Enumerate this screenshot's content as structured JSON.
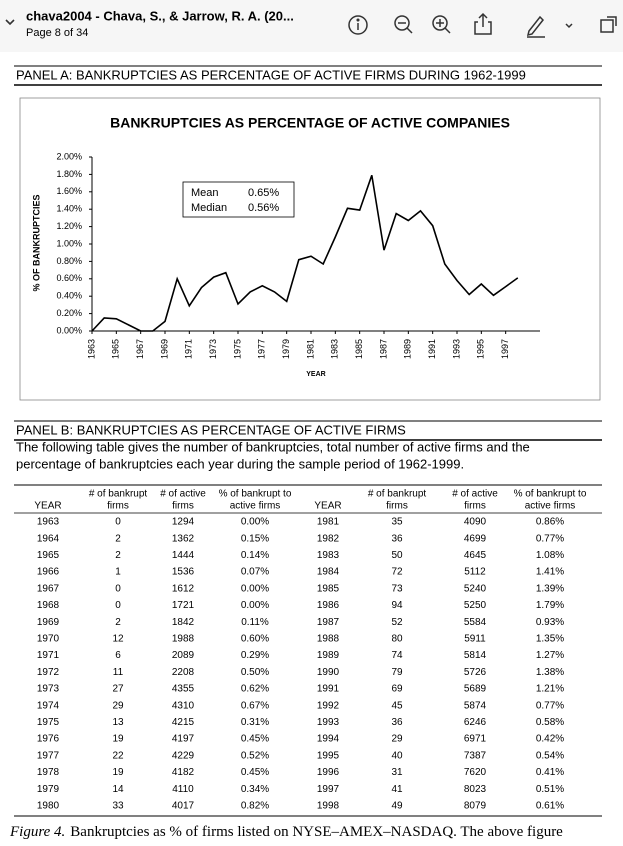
{
  "header": {
    "title": "chava2004 - Chava, S., & Jarrow, R. A. (20...",
    "page": "Page 8 of 34"
  },
  "panel_a": {
    "title": "PANEL A: BANKRUPTCIES AS PERCENTAGE OF ACTIVE FIRMS DURING 1962-1999"
  },
  "chart_data": {
    "type": "line",
    "title": "BANKRUPTCIES AS PERCENTAGE OF ACTIVE COMPANIES",
    "ylabel": "% OF BANKRUPTCIES",
    "xlabel": "YEAR",
    "x": [
      1963,
      1964,
      1965,
      1966,
      1967,
      1968,
      1969,
      1970,
      1971,
      1972,
      1973,
      1974,
      1975,
      1976,
      1977,
      1978,
      1979,
      1980,
      1981,
      1982,
      1983,
      1984,
      1985,
      1986,
      1987,
      1988,
      1989,
      1990,
      1991,
      1992,
      1993,
      1994,
      1995,
      1996,
      1997,
      1998
    ],
    "values": [
      0,
      0.15,
      0.14,
      0.07,
      0,
      0,
      0.11,
      0.6,
      0.29,
      0.5,
      0.62,
      0.67,
      0.31,
      0.45,
      0.52,
      0.45,
      0.34,
      0.82,
      0.86,
      0.77,
      1.08,
      1.41,
      1.39,
      1.79,
      0.93,
      1.35,
      1.27,
      1.38,
      1.21,
      0.77,
      0.58,
      0.42,
      0.54,
      0.41,
      0.51,
      0.61
    ],
    "color": "#000000",
    "xlim": [
      1963,
      1999
    ],
    "xticks": [
      1963,
      1965,
      1967,
      1969,
      1971,
      1973,
      1975,
      1977,
      1979,
      1981,
      1983,
      1985,
      1987,
      1989,
      1991,
      1993,
      1995,
      1997
    ],
    "ylim": [
      0,
      2
    ],
    "yticks": [
      {
        "value": 0,
        "label": "0.00%"
      },
      {
        "value": 0.2,
        "label": "0.20%"
      },
      {
        "value": 0.4,
        "label": "0.40%"
      },
      {
        "value": 0.6,
        "label": "0.60%"
      },
      {
        "value": 0.8,
        "label": "0.80%"
      },
      {
        "value": 1,
        "label": "1.00%"
      },
      {
        "value": 1.2,
        "label": "1.20%"
      },
      {
        "value": 1.4,
        "label": "1.40%"
      },
      {
        "value": 1.6,
        "label": "1.60%"
      },
      {
        "value": 1.8,
        "label": "1.80%"
      },
      {
        "value": 2,
        "label": "2.00%"
      }
    ],
    "annotations": {
      "mean_label": "Mean",
      "mean_value": "0.65%",
      "median_label": "Median",
      "median_value": "0.56%"
    }
  },
  "panel_b": {
    "title": "PANEL B: BANKRUPTCIES AS PERCENTAGE OF ACTIVE FIRMS",
    "description": [
      "The following table gives the number of bankruptcies, total number of active firms and the",
      "percentage of bankruptcies each year during the sample period of 1962-1999."
    ]
  },
  "table": {
    "header": [
      [
        "YEAR"
      ],
      [
        "# of bankrupt",
        "firms"
      ],
      [
        "# of active",
        "firms"
      ],
      [
        "% of bankrupt to",
        "active firms"
      ],
      [
        "YEAR"
      ],
      [
        "# of bankrupt",
        "firms"
      ],
      [
        "# of active",
        "firms"
      ],
      [
        "% of bankrupt to",
        "active firms"
      ]
    ],
    "rows": [
      [
        "1963",
        "0",
        "1294",
        "0.00%",
        "1981",
        "35",
        "4090",
        "0.86%"
      ],
      [
        "1964",
        "2",
        "1362",
        "0.15%",
        "1982",
        "36",
        "4699",
        "0.77%"
      ],
      [
        "1965",
        "2",
        "1444",
        "0.14%",
        "1983",
        "50",
        "4645",
        "1.08%"
      ],
      [
        "1966",
        "1",
        "1536",
        "0.07%",
        "1984",
        "72",
        "5112",
        "1.41%"
      ],
      [
        "1967",
        "0",
        "1612",
        "0.00%",
        "1985",
        "73",
        "5240",
        "1.39%"
      ],
      [
        "1968",
        "0",
        "1721",
        "0.00%",
        "1986",
        "94",
        "5250",
        "1.79%"
      ],
      [
        "1969",
        "2",
        "1842",
        "0.11%",
        "1987",
        "52",
        "5584",
        "0.93%"
      ],
      [
        "1970",
        "12",
        "1988",
        "0.60%",
        "1988",
        "80",
        "5911",
        "1.35%"
      ],
      [
        "1971",
        "6",
        "2089",
        "0.29%",
        "1989",
        "74",
        "5814",
        "1.27%"
      ],
      [
        "1972",
        "11",
        "2208",
        "0.50%",
        "1990",
        "79",
        "5726",
        "1.38%"
      ],
      [
        "1973",
        "27",
        "4355",
        "0.62%",
        "1991",
        "69",
        "5689",
        "1.21%"
      ],
      [
        "1974",
        "29",
        "4310",
        "0.67%",
        "1992",
        "45",
        "5874",
        "0.77%"
      ],
      [
        "1975",
        "13",
        "4215",
        "0.31%",
        "1993",
        "36",
        "6246",
        "0.58%"
      ],
      [
        "1976",
        "19",
        "4197",
        "0.45%",
        "1994",
        "29",
        "6971",
        "0.42%"
      ],
      [
        "1977",
        "22",
        "4229",
        "0.52%",
        "1995",
        "40",
        "7387",
        "0.54%"
      ],
      [
        "1978",
        "19",
        "4182",
        "0.45%",
        "1996",
        "31",
        "7620",
        "0.41%"
      ],
      [
        "1979",
        "14",
        "4110",
        "0.34%",
        "1997",
        "41",
        "8023",
        "0.51%"
      ],
      [
        "1980",
        "33",
        "4017",
        "0.82%",
        "1998",
        "49",
        "8079",
        "0.61%"
      ]
    ]
  },
  "caption": {
    "label": "Figure 4.",
    "text": "Bankruptcies as % of firms listed on NYSE–AMEX–NASDAQ. The above figure"
  }
}
